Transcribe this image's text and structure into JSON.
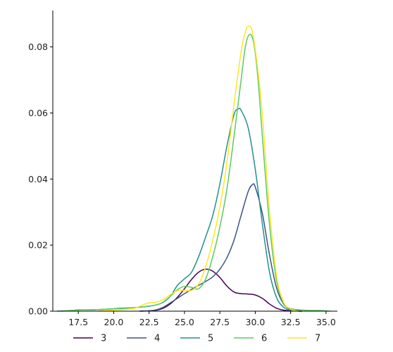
{
  "chart_data": {
    "type": "line",
    "title": "",
    "xlabel": "",
    "ylabel": "",
    "xlim": [
      15.7,
      35.8
    ],
    "ylim": [
      0,
      0.091
    ],
    "xticks": [
      17.5,
      20.0,
      22.5,
      25.0,
      27.5,
      30.0,
      32.5,
      35.0
    ],
    "xtick_labels": [
      "17.5",
      "20.0",
      "22.5",
      "25.0",
      "27.5",
      "30.0",
      "32.5",
      "35.0"
    ],
    "yticks": [
      0.0,
      0.02,
      0.04,
      0.06,
      0.08
    ],
    "ytick_labels": [
      "0.00",
      "0.02",
      "0.04",
      "0.06",
      "0.08"
    ],
    "grid": false,
    "legend_position": "bottom",
    "series": [
      {
        "name": "3",
        "color": "#440154",
        "points": [
          [
            21.9,
            0.0
          ],
          [
            22.5,
            0.0001
          ],
          [
            23.0,
            0.0003
          ],
          [
            23.5,
            0.0009
          ],
          [
            24.0,
            0.0022
          ],
          [
            24.5,
            0.0042
          ],
          [
            25.0,
            0.0068
          ],
          [
            25.5,
            0.0096
          ],
          [
            26.0,
            0.0118
          ],
          [
            26.5,
            0.0127
          ],
          [
            27.0,
            0.0121
          ],
          [
            27.5,
            0.0102
          ],
          [
            28.0,
            0.0076
          ],
          [
            28.5,
            0.0058
          ],
          [
            29.0,
            0.0053
          ],
          [
            29.5,
            0.0052
          ],
          [
            30.0,
            0.0049
          ],
          [
            30.5,
            0.0039
          ],
          [
            31.0,
            0.0022
          ],
          [
            31.5,
            0.0009
          ],
          [
            32.0,
            0.0003
          ],
          [
            32.5,
            0.0001
          ],
          [
            33.3,
            0.0
          ]
        ]
      },
      {
        "name": "4",
        "color": "#3b528b",
        "points": [
          [
            21.8,
            0.0
          ],
          [
            22.5,
            0.0001
          ],
          [
            23.0,
            0.0004
          ],
          [
            23.5,
            0.0012
          ],
          [
            24.0,
            0.0025
          ],
          [
            24.5,
            0.0039
          ],
          [
            25.0,
            0.0053
          ],
          [
            25.5,
            0.0066
          ],
          [
            26.0,
            0.0078
          ],
          [
            26.5,
            0.009
          ],
          [
            27.0,
            0.0104
          ],
          [
            27.5,
            0.0127
          ],
          [
            28.0,
            0.0162
          ],
          [
            28.5,
            0.0215
          ],
          [
            29.0,
            0.029
          ],
          [
            29.5,
            0.0362
          ],
          [
            29.8,
            0.0383
          ],
          [
            30.0,
            0.0376
          ],
          [
            30.5,
            0.0296
          ],
          [
            31.0,
            0.0172
          ],
          [
            31.5,
            0.0071
          ],
          [
            32.0,
            0.0022
          ],
          [
            32.5,
            0.0005
          ],
          [
            33.0,
            0.0001
          ],
          [
            33.3,
            0.0
          ]
        ]
      },
      {
        "name": "5",
        "color": "#21918c",
        "points": [
          [
            16.0,
            0.0
          ],
          [
            17.0,
            0.0002
          ],
          [
            17.5,
            0.0004
          ],
          [
            18.5,
            0.0004
          ],
          [
            19.5,
            0.0006
          ],
          [
            20.5,
            0.0009
          ],
          [
            21.5,
            0.0011
          ],
          [
            22.5,
            0.0015
          ],
          [
            23.0,
            0.0019
          ],
          [
            23.5,
            0.0027
          ],
          [
            24.0,
            0.0045
          ],
          [
            24.5,
            0.0078
          ],
          [
            25.0,
            0.0098
          ],
          [
            25.5,
            0.0118
          ],
          [
            26.0,
            0.0165
          ],
          [
            26.5,
            0.0225
          ],
          [
            27.0,
            0.029
          ],
          [
            27.5,
            0.0385
          ],
          [
            28.0,
            0.05
          ],
          [
            28.5,
            0.0595
          ],
          [
            28.8,
            0.0612
          ],
          [
            29.0,
            0.0608
          ],
          [
            29.5,
            0.0555
          ],
          [
            30.0,
            0.043
          ],
          [
            30.5,
            0.0265
          ],
          [
            31.0,
            0.012
          ],
          [
            31.5,
            0.0042
          ],
          [
            32.0,
            0.0012
          ],
          [
            32.5,
            0.0003
          ],
          [
            33.2,
            0.0
          ]
        ]
      },
      {
        "name": "6",
        "color": "#5ec962",
        "points": [
          [
            16.3,
            0.0
          ],
          [
            17.0,
            0.0002
          ],
          [
            18.0,
            0.0004
          ],
          [
            19.0,
            0.0005
          ],
          [
            20.0,
            0.0007
          ],
          [
            21.0,
            0.0009
          ],
          [
            22.0,
            0.0013
          ],
          [
            23.0,
            0.0019
          ],
          [
            23.5,
            0.0028
          ],
          [
            24.0,
            0.0045
          ],
          [
            24.5,
            0.0065
          ],
          [
            25.0,
            0.0075
          ],
          [
            25.5,
            0.0072
          ],
          [
            26.0,
            0.0068
          ],
          [
            26.5,
            0.0098
          ],
          [
            27.0,
            0.0165
          ],
          [
            27.5,
            0.0255
          ],
          [
            28.0,
            0.037
          ],
          [
            28.5,
            0.053
          ],
          [
            29.0,
            0.07
          ],
          [
            29.3,
            0.08
          ],
          [
            29.6,
            0.0838
          ],
          [
            29.9,
            0.081
          ],
          [
            30.2,
            0.07
          ],
          [
            30.5,
            0.053
          ],
          [
            31.0,
            0.0265
          ],
          [
            31.5,
            0.0093
          ],
          [
            32.0,
            0.0025
          ],
          [
            32.5,
            0.0008
          ],
          [
            33.5,
            0.0003
          ],
          [
            34.5,
            0.0002
          ],
          [
            35.0,
            0.0001
          ],
          [
            35.3,
            0.0
          ]
        ]
      },
      {
        "name": "7",
        "color": "#fde725",
        "points": [
          [
            18.9,
            0.0
          ],
          [
            19.5,
            0.0002
          ],
          [
            20.5,
            0.0004
          ],
          [
            21.5,
            0.0009
          ],
          [
            22.0,
            0.0018
          ],
          [
            22.5,
            0.0025
          ],
          [
            23.0,
            0.0027
          ],
          [
            23.5,
            0.0035
          ],
          [
            24.0,
            0.005
          ],
          [
            24.5,
            0.0062
          ],
          [
            25.0,
            0.0063
          ],
          [
            25.5,
            0.0063
          ],
          [
            26.0,
            0.0082
          ],
          [
            26.5,
            0.0135
          ],
          [
            27.0,
            0.0215
          ],
          [
            27.5,
            0.0315
          ],
          [
            28.0,
            0.045
          ],
          [
            28.5,
            0.0625
          ],
          [
            29.0,
            0.0785
          ],
          [
            29.3,
            0.0845
          ],
          [
            29.5,
            0.0862
          ],
          [
            29.8,
            0.0845
          ],
          [
            30.2,
            0.0725
          ],
          [
            30.5,
            0.0595
          ],
          [
            31.0,
            0.031
          ],
          [
            31.5,
            0.0108
          ],
          [
            32.0,
            0.0028
          ],
          [
            32.5,
            0.0006
          ],
          [
            33.0,
            0.0
          ]
        ]
      }
    ]
  }
}
